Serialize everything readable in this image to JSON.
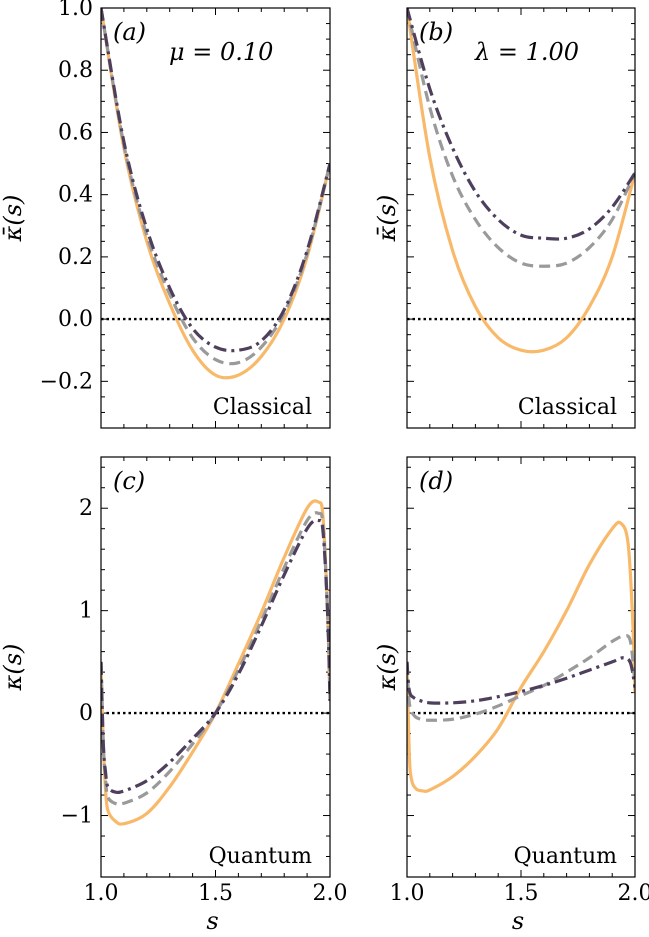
{
  "colors": {
    "solid": "#F9B96A",
    "dashed": "#9A9A9A",
    "dashdot": "#4E3F5C",
    "zero": "#000000"
  },
  "chart_data": [
    {
      "type": "line",
      "panel": "(a)",
      "annotation": "μ = 0.10",
      "regime": "Classical",
      "ylabel": "κ̄(s)",
      "xlabel": "",
      "xlim": [
        1.0,
        2.0
      ],
      "ylim": [
        -0.35,
        1.0
      ],
      "yticks": [
        -0.2,
        0.0,
        0.2,
        0.4,
        0.6,
        0.8,
        1.0
      ],
      "ytick_labels": [
        "−0.2",
        "0.0",
        "0.2",
        "0.4",
        "0.6",
        "0.8",
        "1.0"
      ],
      "xtick_labels": [],
      "zero_line": 0,
      "series": [
        {
          "style": "solid",
          "x": [
            1.0,
            1.1,
            1.2,
            1.3,
            1.4,
            1.5,
            1.6,
            1.7,
            1.8,
            1.9,
            2.0
          ],
          "y": [
            1.0,
            0.55,
            0.25,
            0.05,
            -0.1,
            -0.18,
            -0.18,
            -0.12,
            0.0,
            0.2,
            0.5
          ]
        },
        {
          "style": "dashed",
          "x": [
            1.0,
            1.1,
            1.2,
            1.3,
            1.4,
            1.5,
            1.6,
            1.7,
            1.8,
            1.9,
            2.0
          ],
          "y": [
            1.0,
            0.56,
            0.27,
            0.08,
            -0.06,
            -0.13,
            -0.14,
            -0.09,
            0.02,
            0.21,
            0.5
          ]
        },
        {
          "style": "dashdot",
          "x": [
            1.0,
            1.1,
            1.2,
            1.3,
            1.4,
            1.5,
            1.6,
            1.7,
            1.8,
            1.9,
            2.0
          ],
          "y": [
            1.0,
            0.57,
            0.29,
            0.1,
            -0.03,
            -0.09,
            -0.1,
            -0.07,
            0.03,
            0.22,
            0.5
          ]
        }
      ]
    },
    {
      "type": "line",
      "panel": "(b)",
      "annotation": "λ = 1.00",
      "regime": "Classical",
      "ylabel": "κ̄(s)",
      "xlabel": "",
      "xlim": [
        1.0,
        2.0
      ],
      "ylim": [
        -0.35,
        1.0
      ],
      "yticks": [
        -0.2,
        0.0,
        0.2,
        0.4,
        0.6,
        0.8,
        1.0
      ],
      "ytick_labels": [],
      "xtick_labels": [],
      "zero_line": 0,
      "series": [
        {
          "style": "solid",
          "x": [
            1.0,
            1.1,
            1.2,
            1.3,
            1.4,
            1.5,
            1.6,
            1.7,
            1.8,
            1.9,
            2.0
          ],
          "y": [
            1.0,
            0.52,
            0.22,
            0.04,
            -0.06,
            -0.1,
            -0.1,
            -0.06,
            0.04,
            0.2,
            0.47
          ]
        },
        {
          "style": "dashed",
          "x": [
            1.0,
            1.1,
            1.2,
            1.3,
            1.4,
            1.5,
            1.6,
            1.7,
            1.8,
            1.9,
            2.0
          ],
          "y": [
            1.0,
            0.68,
            0.46,
            0.32,
            0.23,
            0.18,
            0.17,
            0.18,
            0.23,
            0.32,
            0.47
          ]
        },
        {
          "style": "dashdot",
          "x": [
            1.0,
            1.1,
            1.2,
            1.3,
            1.4,
            1.5,
            1.6,
            1.7,
            1.8,
            1.9,
            2.0
          ],
          "y": [
            1.0,
            0.74,
            0.55,
            0.41,
            0.32,
            0.27,
            0.26,
            0.26,
            0.29,
            0.36,
            0.47
          ]
        }
      ]
    },
    {
      "type": "line",
      "panel": "(c)",
      "regime": "Quantum",
      "ylabel": "κ(s)",
      "xlabel": "s",
      "xlim": [
        1.0,
        2.0
      ],
      "ylim": [
        -1.6,
        2.5
      ],
      "yticks": [
        -1,
        0,
        1,
        2
      ],
      "ytick_labels": [
        "−1",
        "0",
        "1",
        "2"
      ],
      "xtick_labels": [
        "1.0",
        "1.5",
        "2.0"
      ],
      "zero_line": 0,
      "series": [
        {
          "style": "solid",
          "x": [
            1.0,
            1.01,
            1.02,
            1.03,
            1.06,
            1.1,
            1.2,
            1.3,
            1.4,
            1.5,
            1.6,
            1.7,
            1.8,
            1.9,
            1.95,
            1.97,
            1.99,
            2.0
          ],
          "y": [
            0.5,
            -0.3,
            -0.75,
            -0.95,
            -1.05,
            -1.08,
            -0.98,
            -0.72,
            -0.38,
            0.0,
            0.48,
            0.98,
            1.52,
            2.0,
            2.06,
            1.9,
            0.95,
            0.12
          ]
        },
        {
          "style": "dashed",
          "x": [
            1.0,
            1.01,
            1.02,
            1.03,
            1.06,
            1.1,
            1.2,
            1.3,
            1.4,
            1.5,
            1.6,
            1.7,
            1.8,
            1.9,
            1.95,
            1.97,
            1.99,
            2.0
          ],
          "y": [
            0.5,
            -0.3,
            -0.65,
            -0.82,
            -0.88,
            -0.88,
            -0.78,
            -0.57,
            -0.3,
            0.0,
            0.42,
            0.9,
            1.42,
            1.88,
            1.95,
            1.82,
            0.95,
            0.12
          ]
        },
        {
          "style": "dashdot",
          "x": [
            1.0,
            1.01,
            1.02,
            1.03,
            1.06,
            1.1,
            1.2,
            1.3,
            1.4,
            1.5,
            1.6,
            1.7,
            1.8,
            1.9,
            1.95,
            1.97,
            1.99,
            2.0
          ],
          "y": [
            0.5,
            -0.3,
            -0.58,
            -0.72,
            -0.77,
            -0.76,
            -0.66,
            -0.48,
            -0.25,
            0.0,
            0.38,
            0.85,
            1.35,
            1.8,
            1.88,
            1.76,
            0.95,
            0.12
          ]
        }
      ]
    },
    {
      "type": "line",
      "panel": "(d)",
      "regime": "Quantum",
      "ylabel": "κ(s)",
      "xlabel": "s",
      "xlim": [
        1.0,
        2.0
      ],
      "ylim": [
        -1.6,
        2.5
      ],
      "yticks": [
        -1,
        0,
        1,
        2
      ],
      "ytick_labels": [],
      "xtick_labels": [
        "1.0",
        "1.5",
        "2.0"
      ],
      "zero_line": 0,
      "series": [
        {
          "style": "solid",
          "x": [
            1.0,
            1.01,
            1.02,
            1.04,
            1.07,
            1.1,
            1.2,
            1.3,
            1.4,
            1.5,
            1.6,
            1.7,
            1.8,
            1.9,
            1.94,
            1.97,
            1.99,
            2.0
          ],
          "y": [
            0.5,
            -0.4,
            -0.65,
            -0.74,
            -0.76,
            -0.75,
            -0.62,
            -0.42,
            -0.15,
            0.25,
            0.6,
            1.0,
            1.45,
            1.8,
            1.85,
            1.65,
            0.9,
            0.2
          ]
        },
        {
          "style": "dashed",
          "x": [
            1.0,
            1.01,
            1.03,
            1.06,
            1.1,
            1.2,
            1.3,
            1.4,
            1.5,
            1.6,
            1.7,
            1.8,
            1.9,
            1.95,
            1.98,
            2.0
          ],
          "y": [
            0.5,
            0.1,
            -0.02,
            -0.06,
            -0.07,
            -0.06,
            -0.01,
            0.07,
            0.17,
            0.27,
            0.4,
            0.54,
            0.7,
            0.75,
            0.7,
            0.28
          ]
        },
        {
          "style": "dashdot",
          "x": [
            1.0,
            1.01,
            1.03,
            1.06,
            1.1,
            1.2,
            1.3,
            1.4,
            1.5,
            1.6,
            1.7,
            1.8,
            1.9,
            1.95,
            1.98,
            2.0
          ],
          "y": [
            0.5,
            0.22,
            0.15,
            0.12,
            0.1,
            0.1,
            0.12,
            0.16,
            0.21,
            0.27,
            0.34,
            0.42,
            0.5,
            0.54,
            0.49,
            0.25
          ]
        }
      ]
    }
  ]
}
